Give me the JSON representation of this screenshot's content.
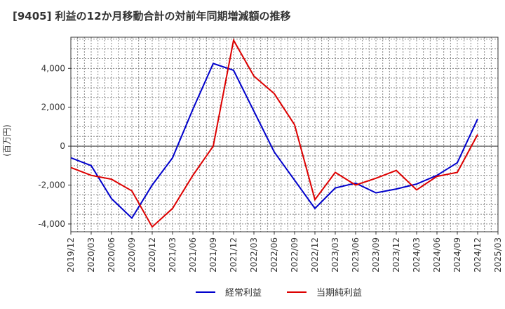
{
  "chart_data": {
    "type": "line",
    "title": "[9405]  利益の12か月移動合計の対前年同期増減額の推移",
    "ylabel": "(百万円)",
    "xlabel": "",
    "ylim": [
      -4400,
      5600
    ],
    "yticks": [
      -4000,
      -2000,
      0,
      2000,
      4000
    ],
    "ytick_labels": [
      "-4,000",
      "-2,000",
      "0",
      "2,000",
      "4,000"
    ],
    "categories": [
      "2019/12",
      "2020/03",
      "2020/06",
      "2020/09",
      "2020/12",
      "2021/03",
      "2021/06",
      "2021/09",
      "2021/12",
      "2022/03",
      "2022/06",
      "2022/09",
      "2022/12",
      "2023/03",
      "2023/06",
      "2023/09",
      "2023/12",
      "2024/03",
      "2024/06",
      "2024/09",
      "2024/12",
      "2025/03"
    ],
    "series": [
      {
        "name": "経常利益",
        "color": "#0000cc",
        "values": [
          -600,
          -1000,
          -2700,
          -3700,
          -2000,
          -600,
          1900,
          4250,
          3900,
          1800,
          -300,
          -1750,
          -3200,
          -2150,
          -1900,
          -2400,
          -2200,
          -1950,
          -1500,
          -850,
          1400,
          null
        ]
      },
      {
        "name": "当期純利益",
        "color": "#dd0000",
        "values": [
          -1100,
          -1500,
          -1700,
          -2300,
          -4150,
          -3200,
          -1500,
          0,
          5450,
          3600,
          2700,
          1100,
          -2750,
          -1350,
          -2000,
          -1650,
          -1250,
          -2250,
          -1550,
          -1350,
          600,
          null
        ]
      }
    ],
    "legend_position": "bottom-center",
    "grid": true
  }
}
